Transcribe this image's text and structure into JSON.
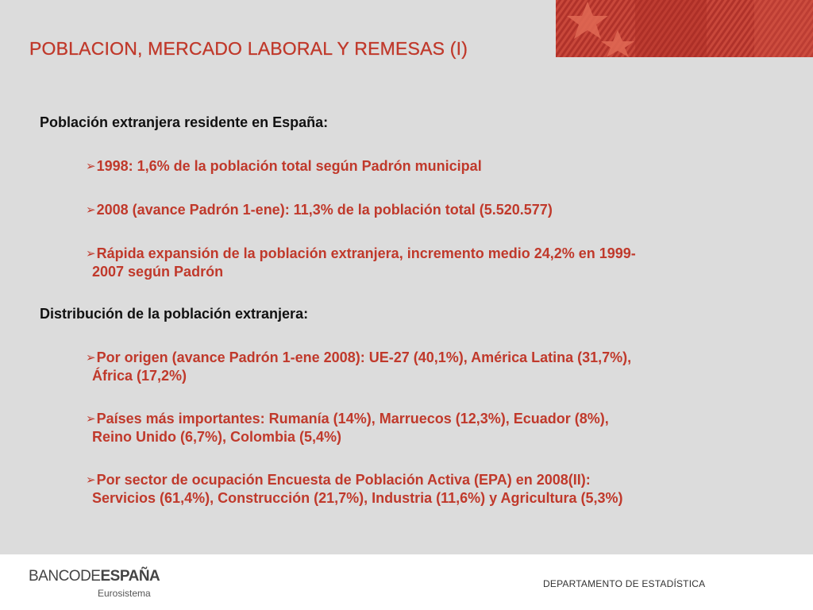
{
  "title": "POBLACION, MERCADO LABORAL Y REMESAS (I)",
  "section1": {
    "heading": "Población extranjera residente en España:",
    "bullets": [
      {
        "line1": "1998: 1,6% de la población total según Padrón municipal",
        "line2": ""
      },
      {
        "line1": "2008 (avance Padrón 1-ene): 11,3% de la población total (5.520.577)",
        "line2": ""
      },
      {
        "line1": "Rápida expansión de la población extranjera, incremento medio 24,2% en 1999-",
        "line2": "2007 según Padrón"
      }
    ]
  },
  "section2": {
    "heading": "Distribución de la población extranjera:",
    "bullets": [
      {
        "line1": "Por origen (avance Padrón 1-ene 2008): UE-27 (40,1%), América Latina (31,7%),",
        "line2": "África (17,2%)"
      },
      {
        "line1": "Países más importantes: Rumanía (14%), Marruecos (12,3%), Ecuador (8%),",
        "line2": "Reino Unido (6,7%), Colombia (5,4%)"
      },
      {
        "line1": "Por sector de ocupación Encuesta de Población Activa (EPA) en 2008(II):",
        "line2": "Servicios (61,4%), Construcción (21,7%), Industria (11,6%) y Agricultura (5,3%)"
      }
    ]
  },
  "bullet_glyph": "➢",
  "footer": {
    "bank_light": "BANCO",
    "bank_de": "DE",
    "bank_bold": "ESPAÑA",
    "bank_sub": "Eurosistema",
    "department": "DEPARTAMENTO DE ESTADÍSTICA"
  },
  "colors": {
    "accent": "#c0392b",
    "background": "#dcdcdc",
    "footer": "#ffffff"
  },
  "icons": {
    "banner": "flag-star-banner-icon",
    "bullet": "arrow-bullet-icon"
  }
}
